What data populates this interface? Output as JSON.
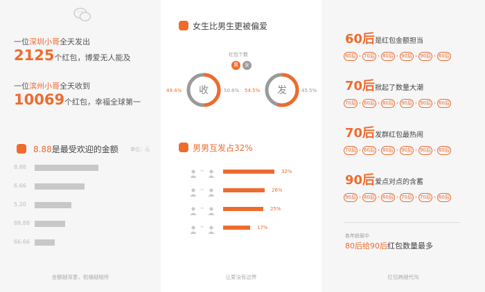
{
  "left": {
    "story1": {
      "pre": "一位",
      "place": "深圳小哥",
      "post": "全天发出",
      "num": "2125",
      "tail": "个红包，博爱无人能及"
    },
    "story2": {
      "pre": "一位",
      "place": "滨州小哥",
      "post": "全天收到",
      "num": "10069",
      "tail": "个红包，幸福全球第一"
    },
    "chart_title_val": "8.88",
    "chart_title_rest": "是最受欢迎的金额",
    "unit": "单位：元",
    "footer": "金额越深意，祝福越相传"
  },
  "chart_data": {
    "type": "bar",
    "title": "8.88是最受欢迎的金额",
    "unit": "单位：元",
    "categories": [
      "8.88",
      "6.66",
      "5.20",
      "88.88",
      "66.66"
    ],
    "values": [
      1.0,
      0.78,
      0.58,
      0.48,
      0.32
    ]
  },
  "middle": {
    "title": "女生比男生更被偏爱",
    "legend_title": "红包个数",
    "legend_male": "男",
    "legend_female": "女",
    "receive_label": "收",
    "send_label": "发",
    "receive_male_pct": "49.4%",
    "receive_female_pct": "50.6%",
    "send_male_pct": "54.5%",
    "send_female_pct": "45.5%",
    "receive_male_frac": 0.494,
    "send_male_frac": 0.545,
    "mm_title": "男男互发占32%",
    "pairs": [
      {
        "pct": "32%",
        "value": 0.32
      },
      {
        "pct": "26%",
        "value": 0.26
      },
      {
        "pct": "25%",
        "value": 0.25
      },
      {
        "pct": "17%",
        "value": 0.17
      }
    ],
    "footer": "让爱没有边界"
  },
  "right": {
    "gens": [
      {
        "num": "60后",
        "text": "是红包金额担当",
        "order": [
          "60后",
          "70后",
          "80后",
          "90后",
          "90后",
          "60后"
        ]
      },
      {
        "num": "70后",
        "text": "掀起了数量大潮",
        "order": [
          "70后",
          "60后",
          "80后",
          "90后",
          "90后",
          "60后"
        ]
      },
      {
        "num": "70后",
        "text": "发群红包最热闹",
        "order": [
          "70后",
          "60后",
          "80后",
          "90后",
          "90后",
          "60后"
        ]
      },
      {
        "num": "90后",
        "text": "爱点对点的含蓄",
        "order": [
          "90后",
          "80后",
          "60后",
          "70后",
          "70后",
          "60后"
        ]
      }
    ],
    "note_top": "各年龄层中",
    "note_hl": "80后给90后",
    "note_rest": "红包数量最多",
    "footer": "红包跨越代沟"
  },
  "colors": {
    "accent": "#ee6b2e",
    "grey_bar": "#c8c8ca",
    "ring_grey": "#9a9a9a"
  }
}
